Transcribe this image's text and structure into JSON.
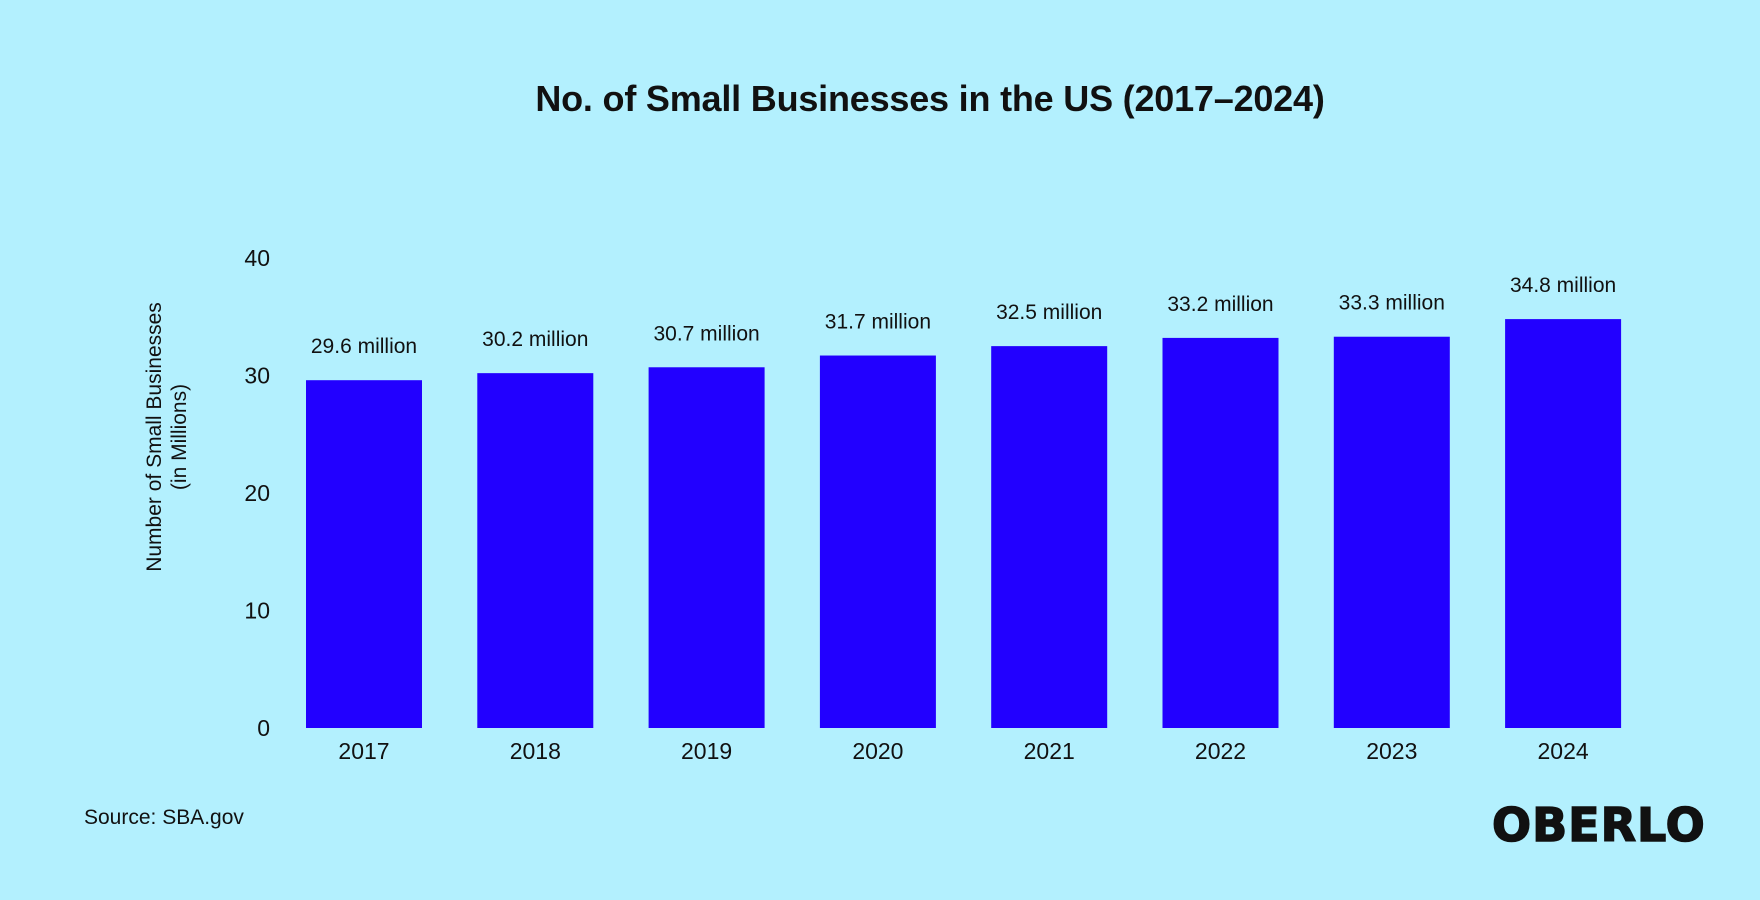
{
  "chart_data": {
    "type": "bar",
    "title": "No. of Small Businesses in the US (2017–2024)",
    "ylabel_lines": [
      "Number of Small Businesses",
      "(in Millions)"
    ],
    "xlabel": "",
    "categories": [
      "2017",
      "2018",
      "2019",
      "2020",
      "2021",
      "2022",
      "2023",
      "2024"
    ],
    "values": [
      29.6,
      30.2,
      30.7,
      31.7,
      32.5,
      33.2,
      33.3,
      34.8
    ],
    "data_labels": [
      "29.6 million",
      "30.2 million",
      "30.7 million",
      "31.7 million",
      "32.5 million",
      "33.2 million",
      "33.3 million",
      "34.8 million"
    ],
    "ylim": [
      0,
      40
    ],
    "yticks": [
      "0",
      "10",
      "20",
      "30",
      "40"
    ],
    "grid": false,
    "legend": "none",
    "bar_color": "#2200ff",
    "background_color": "#b3f0fe"
  },
  "footer": {
    "source": "Source: SBA.gov",
    "logo": "OBERLO"
  }
}
